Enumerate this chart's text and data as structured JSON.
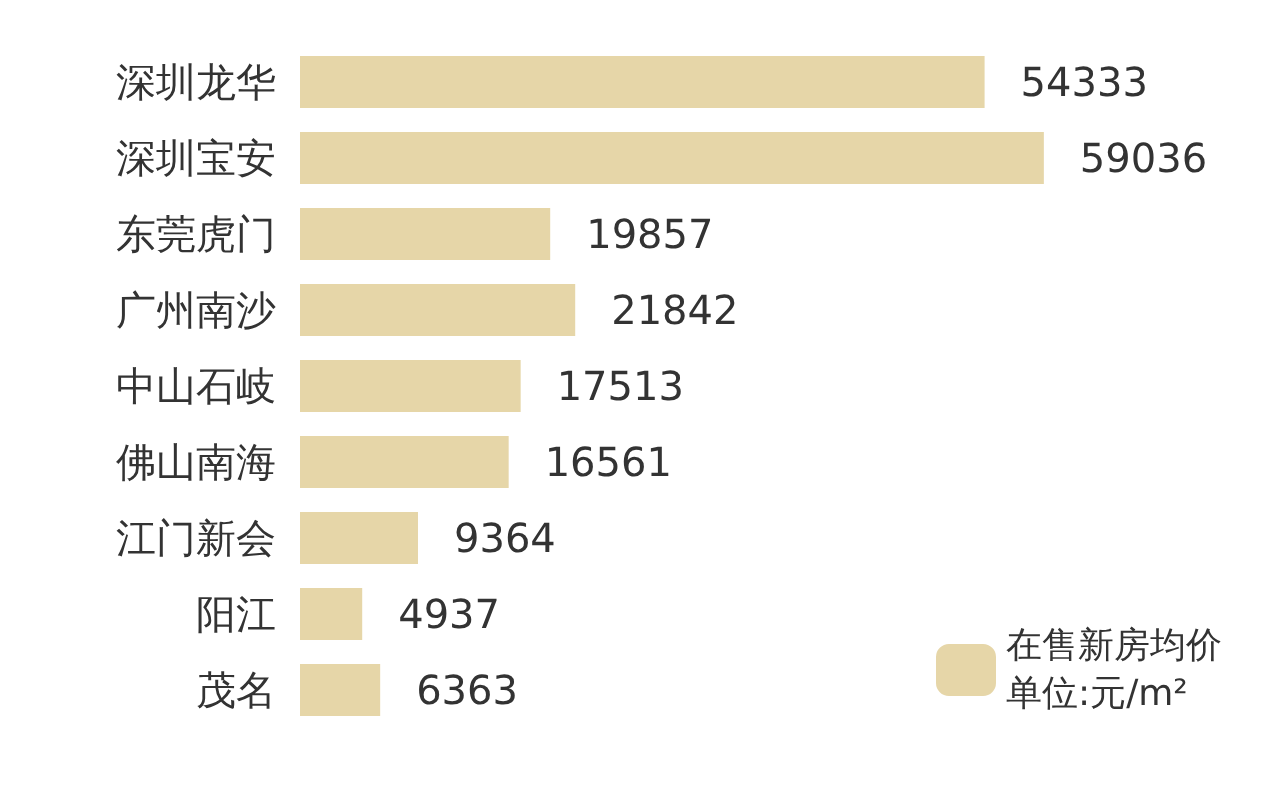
{
  "chart_data": {
    "type": "bar",
    "orientation": "horizontal",
    "categories": [
      "深圳龙华",
      "深圳宝安",
      "东莞虎门",
      "广州南沙",
      "中山石岐",
      "佛山南海",
      "江门新会",
      "阳江",
      "茂名"
    ],
    "series": [
      {
        "name": "在售新房均价单位:元/m²",
        "color": "#e6d6a8",
        "values": [
          54333,
          59036,
          19857,
          21842,
          17513,
          16561,
          9364,
          4937,
          6363
        ]
      }
    ],
    "data_labels": true,
    "legend": "bottom right",
    "tick_labels": "y"
  }
}
